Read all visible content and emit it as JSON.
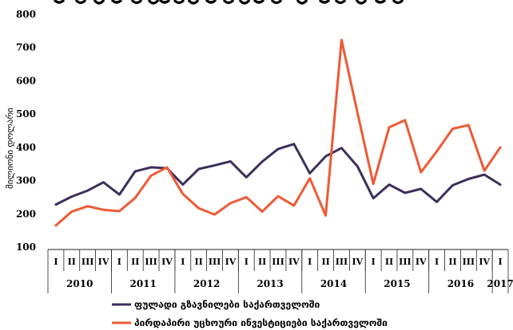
{
  "chart_data": {
    "type": "line",
    "title": "",
    "ylabel": "მილიონი დოლარი",
    "ylim": [
      100,
      800
    ],
    "yticks": [
      100,
      200,
      300,
      400,
      500,
      600,
      700,
      800
    ],
    "quarters": [
      "I",
      "II",
      "III",
      "IV",
      "I",
      "II",
      "III",
      "IV",
      "I",
      "II",
      "III",
      "IV",
      "I",
      "II",
      "III",
      "IV",
      "I",
      "II",
      "III",
      "IV",
      "I",
      "II",
      "III",
      "IV",
      "I",
      "II",
      "III",
      "IV",
      "I"
    ],
    "years": [
      {
        "label": "2010",
        "start": 0,
        "count": 4
      },
      {
        "label": "2011",
        "start": 4,
        "count": 4
      },
      {
        "label": "2012",
        "start": 8,
        "count": 4
      },
      {
        "label": "2013",
        "start": 12,
        "count": 4
      },
      {
        "label": "2014",
        "start": 16,
        "count": 4
      },
      {
        "label": "2015",
        "start": 20,
        "count": 4
      },
      {
        "label": "2016",
        "start": 24,
        "count": 4
      },
      {
        "label": "2017",
        "start": 28,
        "count": 1
      }
    ],
    "series": [
      {
        "name": "ფულადი გზავნილები საქართველოში",
        "color": "#3d2f5b",
        "values": [
          228,
          252,
          270,
          295,
          258,
          328,
          340,
          337,
          288,
          335,
          346,
          358,
          310,
          357,
          395,
          410,
          322,
          373,
          398,
          343,
          247,
          288,
          263,
          275,
          236,
          286,
          305,
          318,
          288
        ]
      },
      {
        "name": "პირდაპირი უცხოური ინვესტიციები საქართველოში",
        "color": "#ee5a35",
        "values": [
          165,
          207,
          223,
          212,
          208,
          248,
          315,
          340,
          260,
          217,
          198,
          232,
          250,
          207,
          253,
          225,
          307,
          195,
          723,
          505,
          290,
          460,
          482,
          325,
          388,
          456,
          467,
          330,
          400
        ]
      }
    ]
  }
}
